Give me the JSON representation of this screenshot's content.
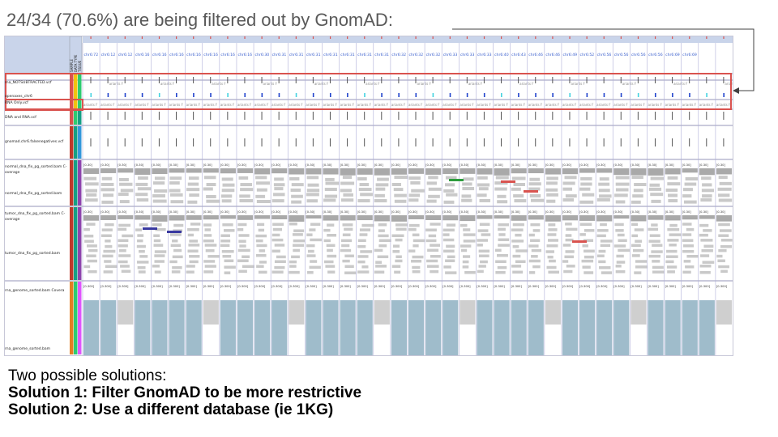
{
  "slide": {
    "title": "24/34 (70.6%) are being filtered out by GnomAD:",
    "intro": "Two possible solutions:",
    "solution1": "Solution 1: Filter GnomAD to be more restrictive",
    "solution2": "Solution 2: Use a different database (ie 1KG)"
  },
  "colors": {
    "highlight_box": "#d9534f",
    "coverage_gray": "#a9a9a9",
    "read_gray": "#c9c9c9",
    "rna_blue": "#9fbccb",
    "header_band": "#c9d4ea",
    "locus_text": "#3a5fcd"
  },
  "igv": {
    "sample_header": [
      "SAMPLE",
      "DATA TYPE",
      "TISSUE"
    ],
    "loci": [
      "chr6:72",
      "chr6:12",
      "chr6:12",
      "chr6:16",
      "chr6:16",
      "chr6:16",
      "chr6:16",
      "chr6:16",
      "chr6:16",
      "chr6:16",
      "chr6:30",
      "chr6:31",
      "chr6:31",
      "chr6:31",
      "chr6:31",
      "chr6:31",
      "chr6:31",
      "chr6:31",
      "chr6:32",
      "chr6:32",
      "chr6:32",
      "chr6:33",
      "chr6:33",
      "chr6:33",
      "chr6:40",
      "chr6:43",
      "chr6:46",
      "chr6:46",
      "chr6:49",
      "chr6:52",
      "chr6:56",
      "chr6:56",
      "chr6:56",
      "chr6:56",
      "chr6:69",
      "chr6:69"
    ],
    "tracks": {
      "rna_notsubtracted": "rna_NOTSUBTRACTED.vcf",
      "openaxes": "openaxes_chr6",
      "rna_only": "RNA Only.vcf",
      "dna_and_rna": "DNA and RNA.vcf",
      "gnomad": "gnomad.chr6.falsenegatives.vcf",
      "normal_cov": "normal_dna_fix_pg_sorted.bam C­overage",
      "normal_bam": "normal_dna_fix_pg_sorted.bam",
      "tumor_cov": "tumor_dna_fix_pg_sorted.bam C­overage",
      "tumor_bam": "tumor_dna_fix_pg_sorted.bam",
      "rna_cov": "rna_genome_sorted.bam Covera",
      "rna_bam": "rna_genome_sorted.bam"
    },
    "range_label": "[0-30]",
    "rna_range_label": "[0-300]",
    "variant_label": "ariants F"
  }
}
